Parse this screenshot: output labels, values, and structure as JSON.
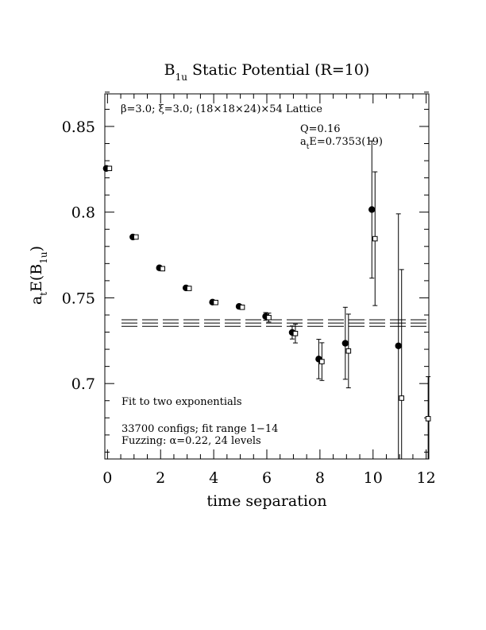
{
  "chart_data": {
    "type": "scatter",
    "title": "B",
    "title_subscript": "1u",
    "title_rest": " Static Potential (R=10)",
    "xlabel": "time separation",
    "ylabel_main": "a",
    "ylabel_sub1": "t",
    "ylabel_mid": "E(B",
    "ylabel_sub2": "1u",
    "ylabel_end": ")",
    "xlim": [
      -0.1,
      12.1
    ],
    "ylim": [
      0.656,
      0.869
    ],
    "x_ticks": [
      "0",
      "2",
      "4",
      "6",
      "8",
      "10",
      "12"
    ],
    "y_ticks": [
      "0.7",
      "0.75",
      "0.8",
      "0.85"
    ],
    "annotations": {
      "lattice": "β=3.0; ξ=3.0; (18×18×24)×54 Lattice",
      "q": "Q=0.16",
      "energy_main": "a",
      "energy_sub": "t",
      "energy_rest": "E=0.7353(19)",
      "fit": "Fit to two exponentials",
      "configs": "33700 configs; fit range 1−14",
      "fuzzing": "Fuzzing: α=0.22, 24 levels"
    },
    "fit_band": {
      "center": 0.7353,
      "lower": 0.7334,
      "upper": 0.7372
    },
    "series": [
      {
        "marker": "filled-circle",
        "points": [
          {
            "x": 0,
            "y": 0.8255,
            "err": 0.0004
          },
          {
            "x": 1,
            "y": 0.7855,
            "err": 0.0005
          },
          {
            "x": 2,
            "y": 0.7675,
            "err": 0.0006
          },
          {
            "x": 3,
            "y": 0.7558,
            "err": 0.0007
          },
          {
            "x": 4,
            "y": 0.7475,
            "err": 0.0008
          },
          {
            "x": 5,
            "y": 0.745,
            "err": 0.0012
          },
          {
            "x": 6,
            "y": 0.7392,
            "err": 0.0022
          },
          {
            "x": 7,
            "y": 0.7298,
            "err": 0.0038
          },
          {
            "x": 8,
            "y": 0.7143,
            "err": 0.0115
          },
          {
            "x": 9,
            "y": 0.7235,
            "err": 0.021
          },
          {
            "x": 10,
            "y": 0.8015,
            "err": 0.04
          },
          {
            "x": 11,
            "y": 0.722,
            "err": 0.077
          }
        ]
      },
      {
        "marker": "open-square",
        "points": [
          {
            "x": 0,
            "y": 0.8255,
            "err": 0.0004
          },
          {
            "x": 1,
            "y": 0.7855,
            "err": 0.0005
          },
          {
            "x": 2,
            "y": 0.767,
            "err": 0.0006
          },
          {
            "x": 3,
            "y": 0.7555,
            "err": 0.0007
          },
          {
            "x": 4,
            "y": 0.7473,
            "err": 0.0008
          },
          {
            "x": 5,
            "y": 0.7445,
            "err": 0.0012
          },
          {
            "x": 6,
            "y": 0.7385,
            "err": 0.0026
          },
          {
            "x": 7,
            "y": 0.7292,
            "err": 0.0055
          },
          {
            "x": 8,
            "y": 0.7128,
            "err": 0.011
          },
          {
            "x": 9,
            "y": 0.719,
            "err": 0.0215
          },
          {
            "x": 10,
            "y": 0.7845,
            "err": 0.039
          },
          {
            "x": 11,
            "y": 0.6915,
            "err": 0.075
          },
          {
            "x": 12,
            "y": 0.6795,
            "err": 0.0245
          }
        ]
      }
    ]
  }
}
